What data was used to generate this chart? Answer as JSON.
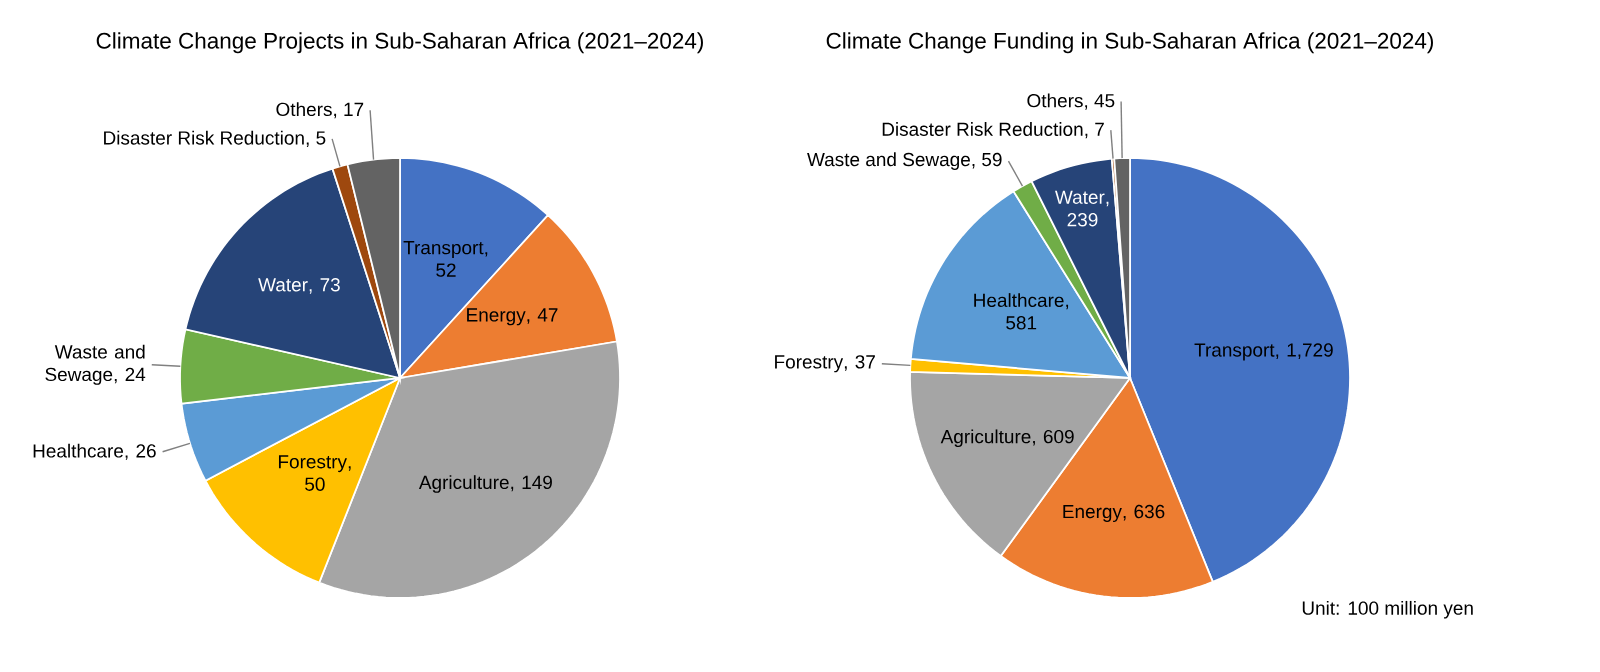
{
  "chart_data": [
    {
      "type": "pie",
      "title": "Climate Change Projects in Sub-Saharan Africa (2021–2024)",
      "categories": [
        "Transport",
        "Energy",
        "Agriculture",
        "Forestry",
        "Healthcare",
        "Waste and Sewage",
        "Water",
        "Disaster Risk Reduction",
        "Others"
      ],
      "values": [
        52,
        47,
        149,
        50,
        26,
        24,
        73,
        5,
        17
      ],
      "value_labels": [
        ", 52",
        ", 47",
        ", 149",
        ", 50",
        ", 26",
        ", 24",
        ", 73",
        ", 5",
        ", 17"
      ],
      "colors": [
        "#4472c4",
        "#ed7d31",
        "#a5a5a5",
        "#ffc000",
        "#5b9bd5",
        "#70ad47",
        "#264478",
        "#9e480e",
        "#636363"
      ]
    },
    {
      "type": "pie",
      "title": "Climate Change Funding in Sub-Saharan Africa (2021–2024)",
      "categories": [
        "Transport",
        "Energy",
        "Agriculture",
        "Forestry",
        "Healthcare",
        "Waste and Sewage",
        "Water",
        "Disaster Risk Reduction",
        "Others"
      ],
      "values": [
        1729,
        636,
        609,
        37,
        581,
        59,
        239,
        7,
        45
      ],
      "value_labels": [
        ", 1,729",
        ", 636",
        ", 609",
        ", 37",
        ", 581",
        ", 59",
        ", 239",
        ", 7",
        ", 45"
      ],
      "colors": [
        "#4472c4",
        "#ed7d31",
        "#a5a5a5",
        "#ffc000",
        "#5b9bd5",
        "#70ad47",
        "#264478",
        "#9e480e",
        "#636363"
      ],
      "annotations": [
        "Unit: 100 million yen"
      ]
    }
  ]
}
